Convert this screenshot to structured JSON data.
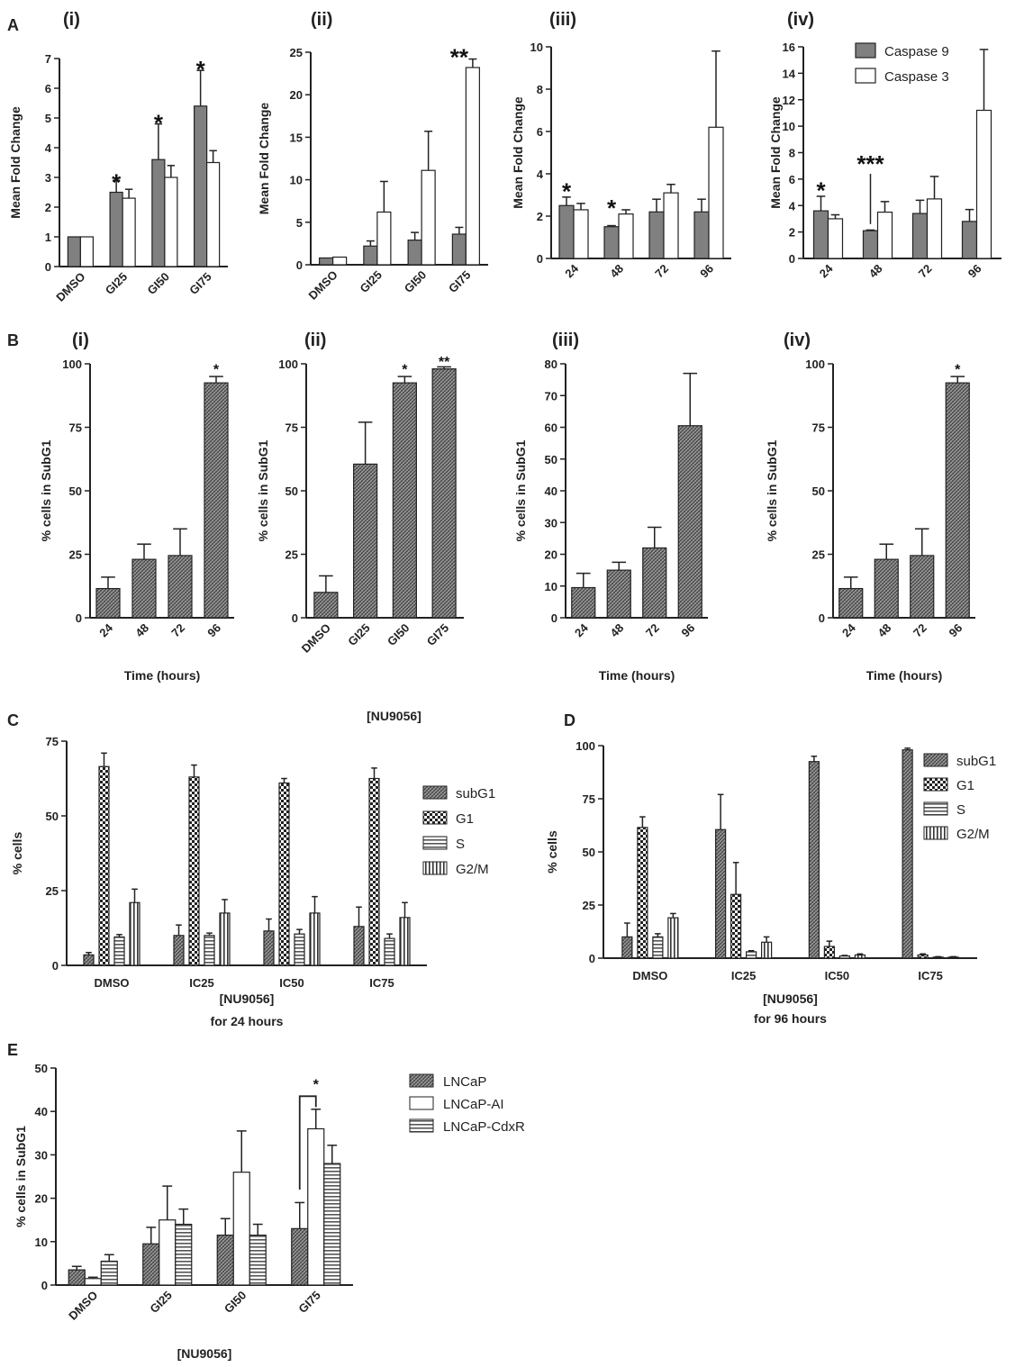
{
  "panel_labels": [
    "A",
    "B",
    "C",
    "D",
    "E"
  ],
  "colors": {
    "caspase9": "#808080",
    "caspase3": "#ffffff",
    "axis": "#222222",
    "text": "#222222"
  },
  "legends": {
    "A": [
      "Caspase 9",
      "Caspase 3"
    ],
    "C": [
      "subG1",
      "G1",
      "S",
      "G2/M"
    ],
    "D": [
      "subG1",
      "G1",
      "S",
      "G2/M"
    ],
    "E": [
      "LNCaP",
      "LNCaP-AI",
      "LNCaP-CdxR"
    ]
  },
  "chart_data": [
    {
      "id": "A-i",
      "panel": "A",
      "subtitle": "(i)",
      "type": "bar",
      "ylabel": "Mean Fold Change",
      "ylim": [
        0,
        7
      ],
      "yticks": [
        0,
        1,
        2,
        3,
        4,
        5,
        6,
        7
      ],
      "categories": [
        "DMSO",
        "GI25",
        "GI50",
        "GI75"
      ],
      "series": [
        {
          "name": "Caspase 9",
          "fill": "gray",
          "values": [
            1.0,
            2.5,
            3.6,
            5.4
          ],
          "errors": [
            0.0,
            0.4,
            1.2,
            1.2
          ]
        },
        {
          "name": "Caspase 3",
          "fill": "white",
          "values": [
            1.0,
            2.3,
            3.0,
            3.5
          ],
          "errors": [
            0.0,
            0.3,
            0.4,
            0.4
          ]
        }
      ],
      "annotations": [
        {
          "text": "*",
          "category": 1,
          "value": 3.0
        },
        {
          "text": "*",
          "category": 2,
          "value": 5.0
        },
        {
          "text": "*",
          "category": 3,
          "value": 6.8
        }
      ]
    },
    {
      "id": "A-ii",
      "panel": "A",
      "subtitle": "(ii)",
      "type": "bar",
      "ylabel": "Mean Fold Change",
      "ylim": [
        0,
        25
      ],
      "yticks": [
        0,
        5,
        10,
        15,
        20,
        25
      ],
      "categories": [
        "DMSO",
        "GI25",
        "GI50",
        "GI75"
      ],
      "series": [
        {
          "name": "Caspase 9",
          "fill": "gray",
          "values": [
            0.8,
            2.2,
            2.9,
            3.6
          ],
          "errors": [
            0.0,
            0.6,
            0.9,
            0.8
          ]
        },
        {
          "name": "Caspase 3",
          "fill": "white",
          "values": [
            0.9,
            6.2,
            11.1,
            23.2
          ],
          "errors": [
            0.0,
            3.6,
            4.6,
            1.0
          ]
        }
      ],
      "annotations": [
        {
          "text": "**",
          "category": 3,
          "value": 25.0
        }
      ]
    },
    {
      "id": "A-iii",
      "panel": "A",
      "subtitle": "(iii)",
      "type": "bar",
      "ylabel": "Mean Fold Change",
      "ylim": [
        0,
        10
      ],
      "yticks": [
        0,
        2,
        4,
        6,
        8,
        10
      ],
      "categories": [
        "24",
        "48",
        "72",
        "96"
      ],
      "series": [
        {
          "name": "Caspase 9",
          "fill": "gray",
          "values": [
            2.5,
            1.5,
            2.2,
            2.2
          ],
          "errors": [
            0.4,
            0.05,
            0.6,
            0.6
          ]
        },
        {
          "name": "Caspase 3",
          "fill": "white",
          "values": [
            2.3,
            2.1,
            3.1,
            6.2
          ],
          "errors": [
            0.3,
            0.2,
            0.4,
            3.6
          ]
        }
      ],
      "annotations": [
        {
          "text": "*",
          "category": 0,
          "value": 3.4
        },
        {
          "text": "*",
          "category": 1,
          "value": 2.6
        }
      ]
    },
    {
      "id": "A-iv",
      "panel": "A",
      "subtitle": "(iv)",
      "type": "bar",
      "ylabel": "Mean Fold Change",
      "ylim": [
        0,
        16
      ],
      "yticks": [
        0,
        2,
        4,
        6,
        8,
        10,
        12,
        14,
        16
      ],
      "categories": [
        "24",
        "48",
        "72",
        "96"
      ],
      "series": [
        {
          "name": "Caspase 9",
          "fill": "gray",
          "values": [
            3.6,
            2.1,
            3.4,
            2.8
          ],
          "errors": [
            1.1,
            0.05,
            1.0,
            0.9
          ]
        },
        {
          "name": "Caspase 3",
          "fill": "white",
          "values": [
            3.0,
            3.5,
            4.5,
            11.2
          ],
          "errors": [
            0.3,
            0.8,
            1.7,
            4.6
          ]
        }
      ],
      "annotations": [
        {
          "text": "*",
          "category": 0,
          "value": 5.5
        },
        {
          "text": "***",
          "category": 1,
          "value": 7.5
        }
      ]
    },
    {
      "id": "B-i",
      "panel": "B",
      "subtitle": "(i)",
      "type": "bar",
      "ylabel": "% cells in SubG1",
      "xlabel": "Time (hours)",
      "ylim": [
        0,
        100
      ],
      "yticks": [
        0,
        25,
        50,
        75,
        100
      ],
      "categories": [
        "24",
        "48",
        "72",
        "96"
      ],
      "series": [
        {
          "fill": "hatch",
          "values": [
            11.5,
            23,
            24.5,
            92.5
          ],
          "errors": [
            4.5,
            6,
            10.5,
            2.5
          ]
        }
      ],
      "annotations": [
        {
          "text": "*",
          "category": 3,
          "value": 99
        }
      ]
    },
    {
      "id": "B-ii",
      "panel": "B",
      "subtitle": "(ii)",
      "type": "bar",
      "ylabel": "% cells in SubG1",
      "xlabel": "[NU9056]",
      "ylim": [
        0,
        100
      ],
      "yticks": [
        0,
        25,
        50,
        75,
        100
      ],
      "categories": [
        "DMSO",
        "GI25",
        "GI50",
        "GI75"
      ],
      "series": [
        {
          "fill": "hatch",
          "values": [
            10,
            60.5,
            92.5,
            98
          ],
          "errors": [
            6.5,
            16.5,
            2.5,
            0.8
          ]
        }
      ],
      "annotations": [
        {
          "text": "*",
          "category": 2,
          "value": 99
        },
        {
          "text": "**",
          "category": 3,
          "value": 102
        }
      ]
    },
    {
      "id": "B-iii",
      "panel": "B",
      "subtitle": "(iii)",
      "type": "bar",
      "ylabel": "% cells in SubG1",
      "xlabel": "Time (hours)",
      "ylim": [
        0,
        80
      ],
      "yticks": [
        0,
        10,
        20,
        30,
        40,
        50,
        60,
        70,
        80
      ],
      "categories": [
        "24",
        "48",
        "72",
        "96"
      ],
      "series": [
        {
          "fill": "hatch",
          "values": [
            9.5,
            15,
            22,
            60.5
          ],
          "errors": [
            4.5,
            2.5,
            6.5,
            16.5
          ]
        }
      ],
      "annotations": []
    },
    {
      "id": "B-iv",
      "panel": "B",
      "subtitle": "(iv)",
      "type": "bar",
      "ylabel": "% cells in SubG1",
      "xlabel": "Time (hours)",
      "ylim": [
        0,
        100
      ],
      "yticks": [
        0,
        25,
        50,
        75,
        100
      ],
      "categories": [
        "24",
        "48",
        "72",
        "96"
      ],
      "series": [
        {
          "fill": "hatch",
          "values": [
            11.5,
            23,
            24.5,
            92.5
          ],
          "errors": [
            4.5,
            6,
            10.5,
            2.5
          ]
        }
      ],
      "annotations": [
        {
          "text": "*",
          "category": 3,
          "value": 99
        }
      ]
    },
    {
      "id": "C",
      "panel": "C",
      "type": "bar",
      "ylabel": "% cells",
      "xlabel": "[NU9056]",
      "xlabel2": "for 24 hours",
      "ylim": [
        0,
        75
      ],
      "yticks": [
        0,
        25,
        50,
        75
      ],
      "categories": [
        "DMSO",
        "IC25",
        "IC50",
        "IC75"
      ],
      "series": [
        {
          "name": "subG1",
          "fill": "hatch",
          "values": [
            3.5,
            10,
            11.5,
            13
          ],
          "errors": [
            0.8,
            3.5,
            4,
            6.5
          ]
        },
        {
          "name": "G1",
          "fill": "checker",
          "values": [
            66.5,
            63,
            61,
            62.5
          ],
          "errors": [
            4.5,
            4,
            1.5,
            3.5
          ]
        },
        {
          "name": "S",
          "fill": "hstripe",
          "values": [
            9.5,
            10,
            10.5,
            9
          ],
          "errors": [
            0.8,
            0.8,
            1.5,
            1.5
          ]
        },
        {
          "name": "G2/M",
          "fill": "vstripe",
          "values": [
            21,
            17.5,
            17.5,
            16
          ],
          "errors": [
            4.5,
            4.5,
            5.5,
            5
          ]
        }
      ],
      "annotations": []
    },
    {
      "id": "D",
      "panel": "D",
      "type": "bar",
      "ylabel": "% cells",
      "xlabel": "[NU9056]",
      "xlabel2": "for 96 hours",
      "ylim": [
        0,
        100
      ],
      "yticks": [
        0,
        25,
        50,
        75,
        100
      ],
      "categories": [
        "DMSO",
        "IC25",
        "IC50",
        "IC75"
      ],
      "series": [
        {
          "name": "subG1",
          "fill": "hatch",
          "values": [
            10,
            60.5,
            92.5,
            98
          ],
          "errors": [
            6.5,
            16.5,
            2.5,
            0.8
          ]
        },
        {
          "name": "G1",
          "fill": "checker",
          "values": [
            61.5,
            30,
            5.5,
            1.5
          ],
          "errors": [
            5,
            15,
            2.5,
            0.5
          ]
        },
        {
          "name": "S",
          "fill": "hstripe",
          "values": [
            10,
            3,
            1,
            0.5
          ],
          "errors": [
            1.5,
            0.5,
            0.3,
            0.2
          ]
        },
        {
          "name": "G2/M",
          "fill": "vstripe",
          "values": [
            19,
            7.5,
            1.5,
            0.5
          ],
          "errors": [
            2,
            2.5,
            0.5,
            0.2
          ]
        }
      ],
      "annotations": []
    },
    {
      "id": "E",
      "panel": "E",
      "type": "bar",
      "ylabel": "% cells in SubG1",
      "xlabel": "[NU9056]",
      "ylim": [
        0,
        50
      ],
      "yticks": [
        0,
        10,
        20,
        30,
        40,
        50
      ],
      "categories": [
        "DMSO",
        "GI25",
        "GI50",
        "GI75"
      ],
      "series": [
        {
          "name": "LNCaP",
          "fill": "hatch",
          "values": [
            3.5,
            9.5,
            11.5,
            13
          ],
          "errors": [
            0.8,
            3.8,
            3.8,
            6
          ]
        },
        {
          "name": "LNCaP-AI",
          "fill": "white",
          "values": [
            1.5,
            15,
            26,
            36
          ],
          "errors": [
            0.3,
            7.8,
            9.5,
            4.5
          ]
        },
        {
          "name": "LNCaP-CdxR",
          "fill": "hstripe",
          "values": [
            5.5,
            14,
            11.5,
            28
          ],
          "errors": [
            1.5,
            3.5,
            2.5,
            4.2
          ]
        }
      ],
      "annotations": [
        {
          "text": "*",
          "category": 3,
          "value": 47
        }
      ]
    }
  ]
}
